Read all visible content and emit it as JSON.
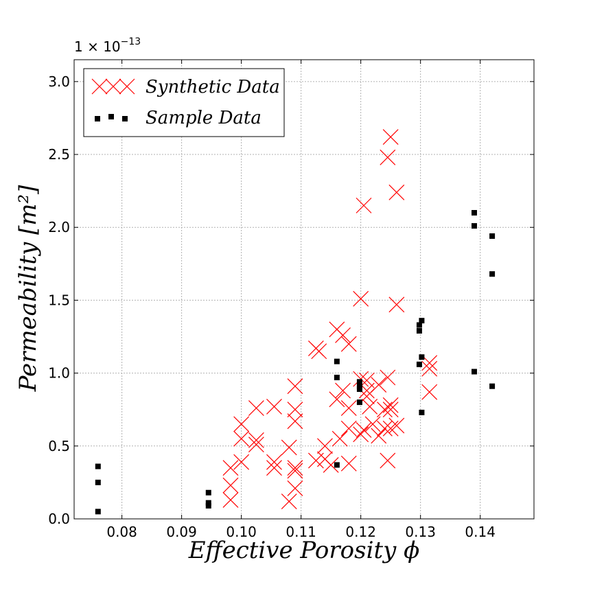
{
  "chart_data": {
    "type": "scatter",
    "xlabel": "Effective Porosity ϕ",
    "ylabel": "Permeability [m²]",
    "y_offset": {
      "base": "1 × 10",
      "exponent": "−13"
    },
    "xlim": [
      0.072,
      0.149
    ],
    "ylim": [
      0.0,
      3.15
    ],
    "xticks": [
      0.08,
      0.09,
      0.1,
      0.11,
      0.12,
      0.13,
      0.14
    ],
    "xtick_labels": [
      "0.08",
      "0.09",
      "0.10",
      "0.11",
      "0.12",
      "0.13",
      "0.14"
    ],
    "yticks": [
      0.0,
      0.5,
      1.0,
      1.5,
      2.0,
      2.5,
      3.0
    ],
    "ytick_labels": [
      "0.0",
      "0.5",
      "1.0",
      "1.5",
      "2.0",
      "2.5",
      "3.0"
    ],
    "grid": true,
    "legend_position": "top-left",
    "series": [
      {
        "name": "Synthetic Data",
        "marker": "x",
        "color": "#ff0000",
        "points": [
          [
            0.0982,
            0.35
          ],
          [
            0.0982,
            0.23
          ],
          [
            0.0982,
            0.13
          ],
          [
            0.1,
            0.65
          ],
          [
            0.1,
            0.55
          ],
          [
            0.1,
            0.39
          ],
          [
            0.1025,
            0.76
          ],
          [
            0.1025,
            0.54
          ],
          [
            0.1025,
            0.51
          ],
          [
            0.1055,
            0.77
          ],
          [
            0.1055,
            0.39
          ],
          [
            0.1055,
            0.35
          ],
          [
            0.108,
            0.49
          ],
          [
            0.108,
            0.12
          ],
          [
            0.109,
            0.91
          ],
          [
            0.109,
            0.75
          ],
          [
            0.109,
            0.67
          ],
          [
            0.109,
            0.35
          ],
          [
            0.109,
            0.33
          ],
          [
            0.109,
            0.21
          ],
          [
            0.1125,
            1.17
          ],
          [
            0.113,
            1.15
          ],
          [
            0.1125,
            0.4
          ],
          [
            0.114,
            0.5
          ],
          [
            0.114,
            0.41
          ],
          [
            0.115,
            0.37
          ],
          [
            0.116,
            1.3
          ],
          [
            0.117,
            1.26
          ],
          [
            0.118,
            1.2
          ],
          [
            0.116,
            0.82
          ],
          [
            0.117,
            0.88
          ],
          [
            0.118,
            0.76
          ],
          [
            0.118,
            0.62
          ],
          [
            0.1165,
            0.55
          ],
          [
            0.118,
            0.38
          ],
          [
            0.12,
            1.51
          ],
          [
            0.1205,
            2.15
          ],
          [
            0.12,
            0.96
          ],
          [
            0.12,
            0.58
          ],
          [
            0.1205,
            0.61
          ],
          [
            0.121,
            0.95
          ],
          [
            0.121,
            0.88
          ],
          [
            0.121,
            0.84
          ],
          [
            0.1215,
            0.77
          ],
          [
            0.122,
            0.65
          ],
          [
            0.123,
            0.57
          ],
          [
            0.123,
            0.92
          ],
          [
            0.124,
            0.75
          ],
          [
            0.124,
            0.62
          ],
          [
            0.1245,
            2.48
          ],
          [
            0.125,
            2.62
          ],
          [
            0.1245,
            0.97
          ],
          [
            0.125,
            0.78
          ],
          [
            0.125,
            0.75
          ],
          [
            0.125,
            0.62
          ],
          [
            0.1245,
            0.4
          ],
          [
            0.126,
            2.24
          ],
          [
            0.126,
            1.47
          ],
          [
            0.126,
            0.64
          ],
          [
            0.1315,
            1.07
          ],
          [
            0.1315,
            1.03
          ],
          [
            0.1315,
            0.87
          ]
        ]
      },
      {
        "name": "Sample Data",
        "marker": "square",
        "color": "#000000",
        "points": [
          [
            0.076,
            0.36
          ],
          [
            0.076,
            0.25
          ],
          [
            0.076,
            0.05
          ],
          [
            0.0945,
            0.18
          ],
          [
            0.0945,
            0.11
          ],
          [
            0.0945,
            0.09
          ],
          [
            0.116,
            1.08
          ],
          [
            0.116,
            0.97
          ],
          [
            0.116,
            0.37
          ],
          [
            0.1198,
            0.94
          ],
          [
            0.1198,
            0.91
          ],
          [
            0.1198,
            0.89
          ],
          [
            0.1198,
            0.8
          ],
          [
            0.1298,
            1.33
          ],
          [
            0.1298,
            1.29
          ],
          [
            0.1298,
            1.06
          ],
          [
            0.1302,
            1.36
          ],
          [
            0.1302,
            1.11
          ],
          [
            0.1302,
            0.73
          ],
          [
            0.139,
            2.1
          ],
          [
            0.139,
            2.01
          ],
          [
            0.139,
            1.01
          ],
          [
            0.142,
            1.94
          ],
          [
            0.142,
            1.68
          ],
          [
            0.142,
            0.91
          ]
        ]
      }
    ]
  }
}
